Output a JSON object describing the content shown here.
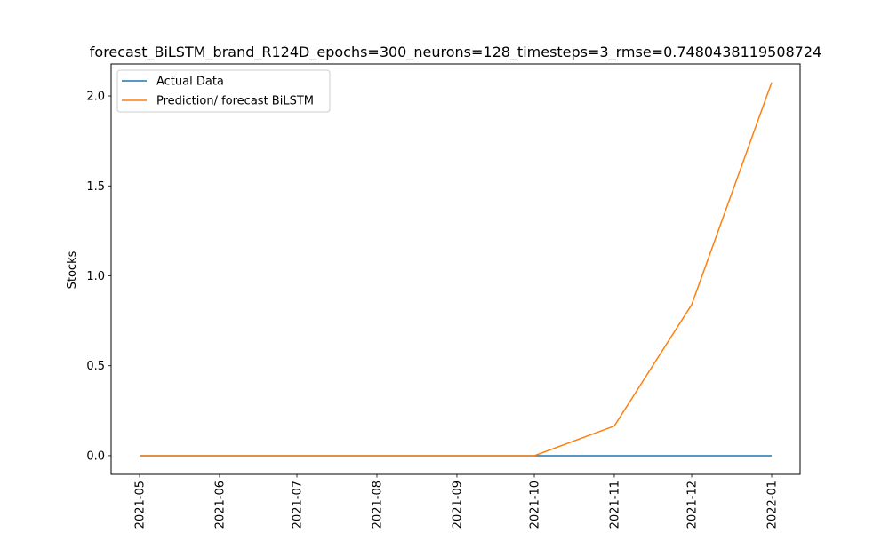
{
  "chart_data": {
    "type": "line",
    "title": "forecast_BiLSTM_brand_R124D_epochs=300_neurons=128_timesteps=3_rmse=0.7480438119508724",
    "xlabel": "",
    "ylabel": "Stocks",
    "x": [
      "2021-05-01",
      "2021-06-01",
      "2021-07-01",
      "2021-08-01",
      "2021-09-01",
      "2021-10-01",
      "2021-11-01",
      "2021-12-01",
      "2022-01-01"
    ],
    "x_ticks": [
      "2021-05",
      "2021-06",
      "2021-07",
      "2021-08",
      "2021-09",
      "2021-10",
      "2021-11",
      "2021-12",
      "2022-01"
    ],
    "y_ticks": [
      0.0,
      0.5,
      1.0,
      1.5,
      2.0
    ],
    "ylim": [
      -0.104,
      2.178
    ],
    "grid": false,
    "legend_position": "upper-left",
    "series": [
      {
        "name": "Actual Data",
        "color": "#1f77b4",
        "values": [
          0,
          0,
          0,
          0,
          0,
          0,
          0,
          0,
          0
        ]
      },
      {
        "name": "Prediction/ forecast BiLSTM",
        "color": "#ff7f0e",
        "values": [
          0,
          0,
          0,
          0,
          0,
          0,
          0.165,
          0.84,
          2.075
        ]
      }
    ]
  }
}
